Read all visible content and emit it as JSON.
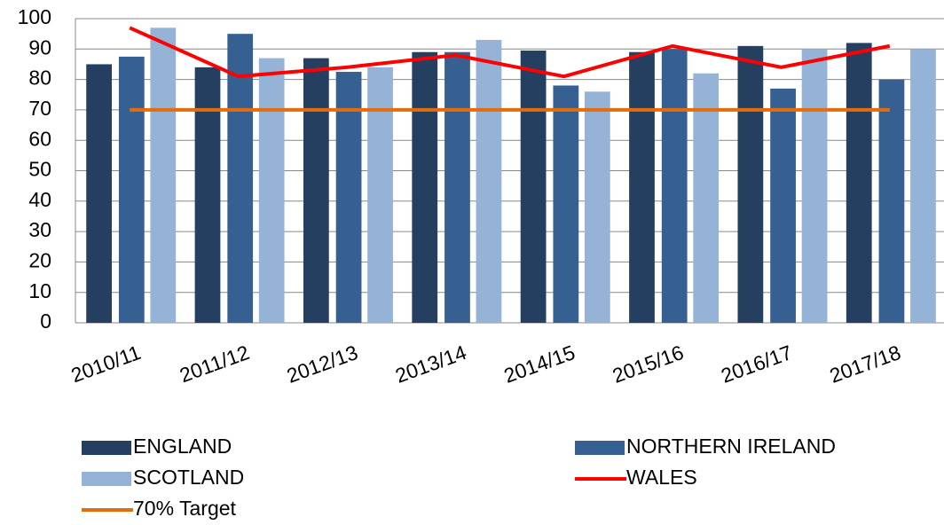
{
  "chart_data": {
    "type": "bar",
    "categories": [
      "2010/11",
      "2011/12",
      "2012/13",
      "2013/14",
      "2014/15",
      "2015/16",
      "2016/17",
      "2017/18"
    ],
    "series": [
      {
        "name": "ENGLAND",
        "type": "bar",
        "color": "#243f60",
        "values": [
          85,
          84,
          87,
          89,
          89.5,
          89,
          91,
          92
        ]
      },
      {
        "name": "NORTHERN IRELAND",
        "type": "bar",
        "color": "#366092",
        "values": [
          87.5,
          95,
          82.5,
          89,
          78,
          90,
          77,
          80
        ]
      },
      {
        "name": "SCOTLAND",
        "type": "bar",
        "color": "#95b3d7",
        "values": [
          97,
          87,
          84,
          93,
          76,
          82,
          90,
          90
        ]
      },
      {
        "name": "WALES",
        "type": "line",
        "color": "#ff0000",
        "values": [
          97,
          81,
          84,
          88,
          81,
          91,
          84,
          91
        ]
      },
      {
        "name": "70% Target",
        "type": "line",
        "color": "#e46c0a",
        "values": [
          70,
          70,
          70,
          70,
          70,
          70,
          70,
          70
        ]
      }
    ],
    "ylim": [
      0,
      100
    ],
    "yticks": [
      0,
      10,
      20,
      30,
      40,
      50,
      60,
      70,
      80,
      90,
      100
    ],
    "grid": true
  }
}
